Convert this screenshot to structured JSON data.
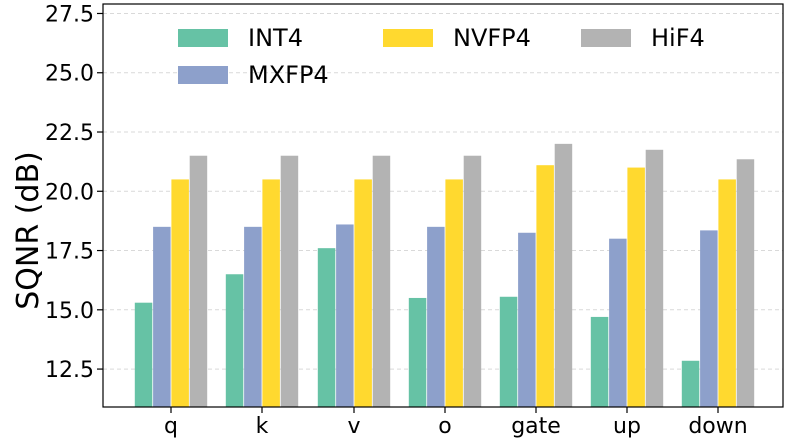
{
  "chart_data": {
    "type": "bar",
    "title": "",
    "xlabel": "",
    "ylabel": "SQNR (dB)",
    "categories": [
      "q",
      "k",
      "v",
      "o",
      "gate",
      "up",
      "down"
    ],
    "series": [
      {
        "name": "INT4",
        "color": "#66c2a5",
        "values": [
          15.3,
          16.5,
          17.6,
          15.5,
          15.55,
          14.7,
          12.85
        ]
      },
      {
        "name": "MXFP4",
        "color": "#8da0cb",
        "values": [
          18.5,
          18.5,
          18.6,
          18.5,
          18.25,
          18.0,
          18.35
        ]
      },
      {
        "name": "NVFP4",
        "color": "#ffd92f",
        "values": [
          20.5,
          20.5,
          20.5,
          20.5,
          21.1,
          21.0,
          20.5
        ]
      },
      {
        "name": "HiF4",
        "color": "#b3b3b3",
        "values": [
          21.5,
          21.5,
          21.5,
          21.5,
          22.0,
          21.75,
          21.35
        ]
      }
    ],
    "ylim": [
      10.9,
      27.9
    ],
    "yticks": [
      "12.5",
      "15.0",
      "17.5",
      "20.0",
      "22.5",
      "25.0",
      "27.5"
    ],
    "grid": true,
    "legend": "upper-center"
  }
}
